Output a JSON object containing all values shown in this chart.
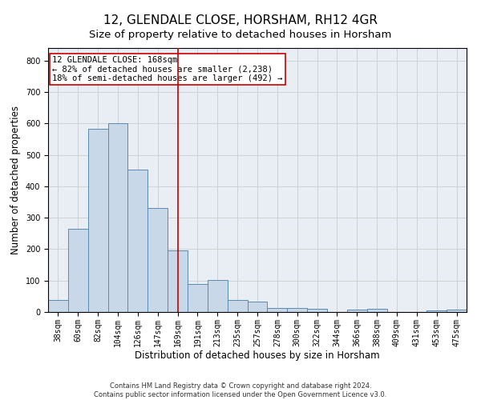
{
  "title": "12, GLENDALE CLOSE, HORSHAM, RH12 4GR",
  "subtitle": "Size of property relative to detached houses in Horsham",
  "xlabel": "Distribution of detached houses by size in Horsham",
  "ylabel": "Number of detached properties",
  "categories": [
    "38sqm",
    "60sqm",
    "82sqm",
    "104sqm",
    "126sqm",
    "147sqm",
    "169sqm",
    "191sqm",
    "213sqm",
    "235sqm",
    "257sqm",
    "278sqm",
    "300sqm",
    "322sqm",
    "344sqm",
    "366sqm",
    "388sqm",
    "409sqm",
    "431sqm",
    "453sqm",
    "475sqm"
  ],
  "values": [
    37,
    265,
    583,
    601,
    453,
    330,
    196,
    90,
    102,
    37,
    33,
    14,
    14,
    10,
    0,
    7,
    10,
    0,
    0,
    5,
    7
  ],
  "bar_color": "#c8d8e8",
  "bar_edge_color": "#5a8ab0",
  "vline_x_index": 6,
  "vline_color": "#cc0000",
  "annotation_text": "12 GLENDALE CLOSE: 168sqm\n← 82% of detached houses are smaller (2,238)\n18% of semi-detached houses are larger (492) →",
  "annotation_box_color": "#ffffff",
  "annotation_box_edge": "#cc0000",
  "ylim": [
    0,
    840
  ],
  "yticks": [
    0,
    100,
    200,
    300,
    400,
    500,
    600,
    700,
    800
  ],
  "grid_color": "#cccccc",
  "bg_color": "#e8eef4",
  "footnote": "Contains HM Land Registry data © Crown copyright and database right 2024.\nContains public sector information licensed under the Open Government Licence v3.0.",
  "title_fontsize": 11,
  "subtitle_fontsize": 9.5,
  "label_fontsize": 8.5,
  "tick_fontsize": 7,
  "annotation_fontsize": 7.5,
  "footnote_fontsize": 6
}
